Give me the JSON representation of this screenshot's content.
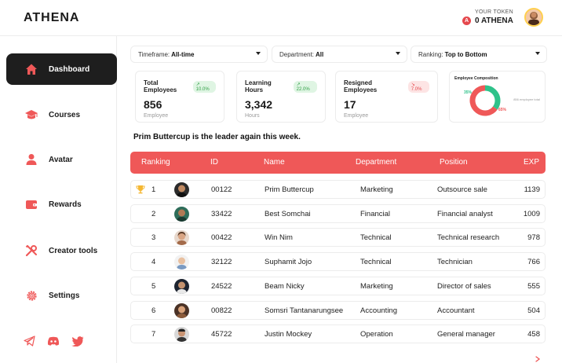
{
  "header": {
    "logo": "ATHENA",
    "token_caption": "YOUR TOKEN",
    "token_badge": "A",
    "token_value": "0 ATHENA"
  },
  "sidebar": {
    "items": [
      {
        "label": "Dashboard",
        "icon": "home-icon"
      },
      {
        "label": "Courses",
        "icon": "graduation-cap-icon"
      },
      {
        "label": "Avatar",
        "icon": "user-icon"
      },
      {
        "label": "Rewards",
        "icon": "wallet-icon"
      },
      {
        "label": "Creator tools",
        "icon": "tools-icon"
      },
      {
        "label": "Settings",
        "icon": "gear-icon"
      }
    ],
    "social": [
      "telegram-icon",
      "discord-icon",
      "twitter-icon"
    ]
  },
  "filters": {
    "timeframe_label": "Timeframe:",
    "timeframe_value": "All-time",
    "department_label": "Department:",
    "department_value": "All",
    "ranking_label": "Ranking:",
    "ranking_value": "Top to Bottom"
  },
  "stats": {
    "employees": {
      "title": "Total Employees",
      "delta": "10.0%",
      "value": "856",
      "sub": "Employee"
    },
    "learning": {
      "title": "Learning Hours",
      "delta": "22.0%",
      "value": "3,342",
      "sub": "Hours"
    },
    "resigned": {
      "title": "Resigned Employees",
      "delta": "7.0%",
      "value": "17",
      "sub": "Employee"
    },
    "composition": {
      "title": "Employee Composition",
      "green_pct": "35%",
      "red_pct": "65%",
      "note": "856 employee total",
      "green_value": 35,
      "red_value": 65
    }
  },
  "headline": "Prim Buttercup is the leader again this week.",
  "table": {
    "columns": [
      "Ranking",
      "ID",
      "Name",
      "Department",
      "Position",
      "EXP"
    ],
    "rows": [
      {
        "rank": "1",
        "id": "00122",
        "name": "Prim Buttercup",
        "dept": "Marketing",
        "position": "Outsource sale",
        "exp": "1139"
      },
      {
        "rank": "2",
        "id": "33422",
        "name": "Best Somchai",
        "dept": "Financial",
        "position": "Financial analyst",
        "exp": "1009"
      },
      {
        "rank": "3",
        "id": "00422",
        "name": "Win Nim",
        "dept": "Technical",
        "position": "Technical research",
        "exp": "978"
      },
      {
        "rank": "4",
        "id": "32122",
        "name": "Suphamit Jojo",
        "dept": "Technical",
        "position": "Technician",
        "exp": "766"
      },
      {
        "rank": "5",
        "id": "24522",
        "name": "Beam Nicky",
        "dept": "Marketing",
        "position": "Director of sales",
        "exp": "555"
      },
      {
        "rank": "6",
        "id": "00822",
        "name": "Somsri Tantanarungsee",
        "dept": "Accounting",
        "position": "Accountant",
        "exp": "504"
      },
      {
        "rank": "7",
        "id": "45722",
        "name": "Justin Mockey",
        "dept": "Operation",
        "position": "General manager",
        "exp": "458"
      }
    ]
  },
  "colors": {
    "accent": "#ef5858",
    "green": "#2fc28a",
    "dark": "#1e1e1e"
  }
}
